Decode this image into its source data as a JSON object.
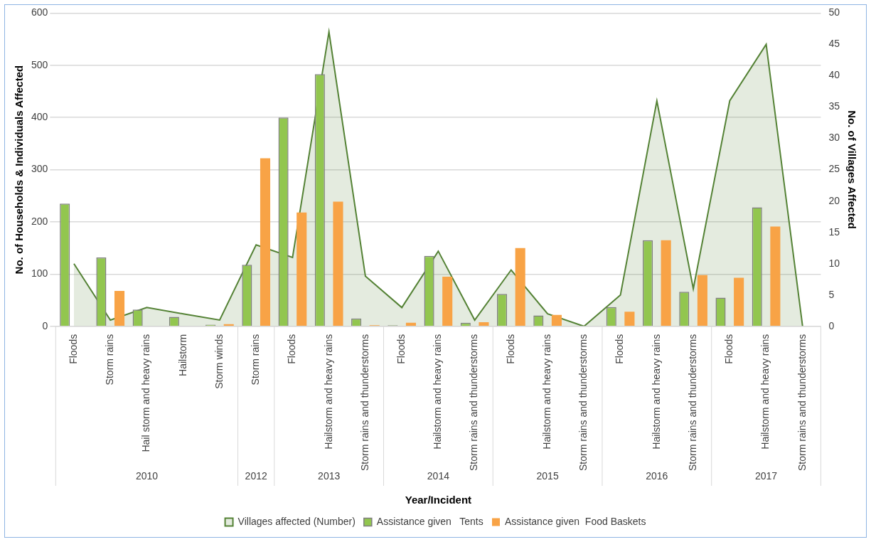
{
  "chart_data": {
    "type": "bar",
    "categories": [
      "Floods",
      "Storm rains",
      "Hail storm and heavy rains",
      "Hailstorm",
      "Storm winds",
      "Storm rains",
      "Floods",
      "Hailstorm and heavy rains",
      "Storm rains and thunderstorms",
      "Floods",
      "Hailstorm and heavy rains",
      "Storm rains and thunderstorms",
      "Floods",
      "Hailstorm and heavy rains",
      "Storm rains and thunderstorms",
      "Floods",
      "Hailstorm and heavy rains",
      "Storm rains and thunderstorms",
      "Floods",
      "Hailstorm and heavy rains",
      "Storm rains and thunderstorms"
    ],
    "series": [
      {
        "name": "Villages affected (Number)",
        "type": "area",
        "axis": "y2",
        "color": "#548235",
        "values": [
          10,
          1,
          3,
          2,
          1,
          13,
          11,
          47,
          8,
          3,
          12,
          1,
          9,
          2,
          0,
          5,
          36,
          6,
          36,
          45,
          0
        ]
      },
      {
        "name": "Assistance given   Tents",
        "color": "#92c64f",
        "values": [
          235,
          132,
          32,
          18,
          3,
          118,
          400,
          483,
          15,
          2,
          135,
          7,
          62,
          21,
          0,
          37,
          165,
          66,
          55,
          228,
          0
        ]
      },
      {
        "name": "Assistance given  Food Baskets",
        "color": "#f8a346",
        "values": [
          0,
          68,
          0,
          0,
          4,
          322,
          218,
          239,
          2,
          7,
          95,
          8,
          150,
          22,
          0,
          28,
          165,
          98,
          93,
          191,
          0
        ]
      }
    ],
    "xlabel": "Year/Incident",
    "ylabel": "No. of Households & Individuals Affected",
    "y2label": "No. of Villages Affected",
    "ylim": [
      0,
      600
    ],
    "yticks": [
      0,
      100,
      200,
      300,
      400,
      500,
      600
    ],
    "y2lim": [
      0,
      50
    ],
    "y2ticks": [
      0,
      5,
      10,
      15,
      20,
      25,
      30,
      35,
      40,
      45,
      50
    ],
    "annotations": [
      "2010",
      "2012",
      "2013",
      "2014",
      "2015",
      "2016",
      "2017"
    ],
    "grid": "y",
    "legend": "bottom"
  }
}
